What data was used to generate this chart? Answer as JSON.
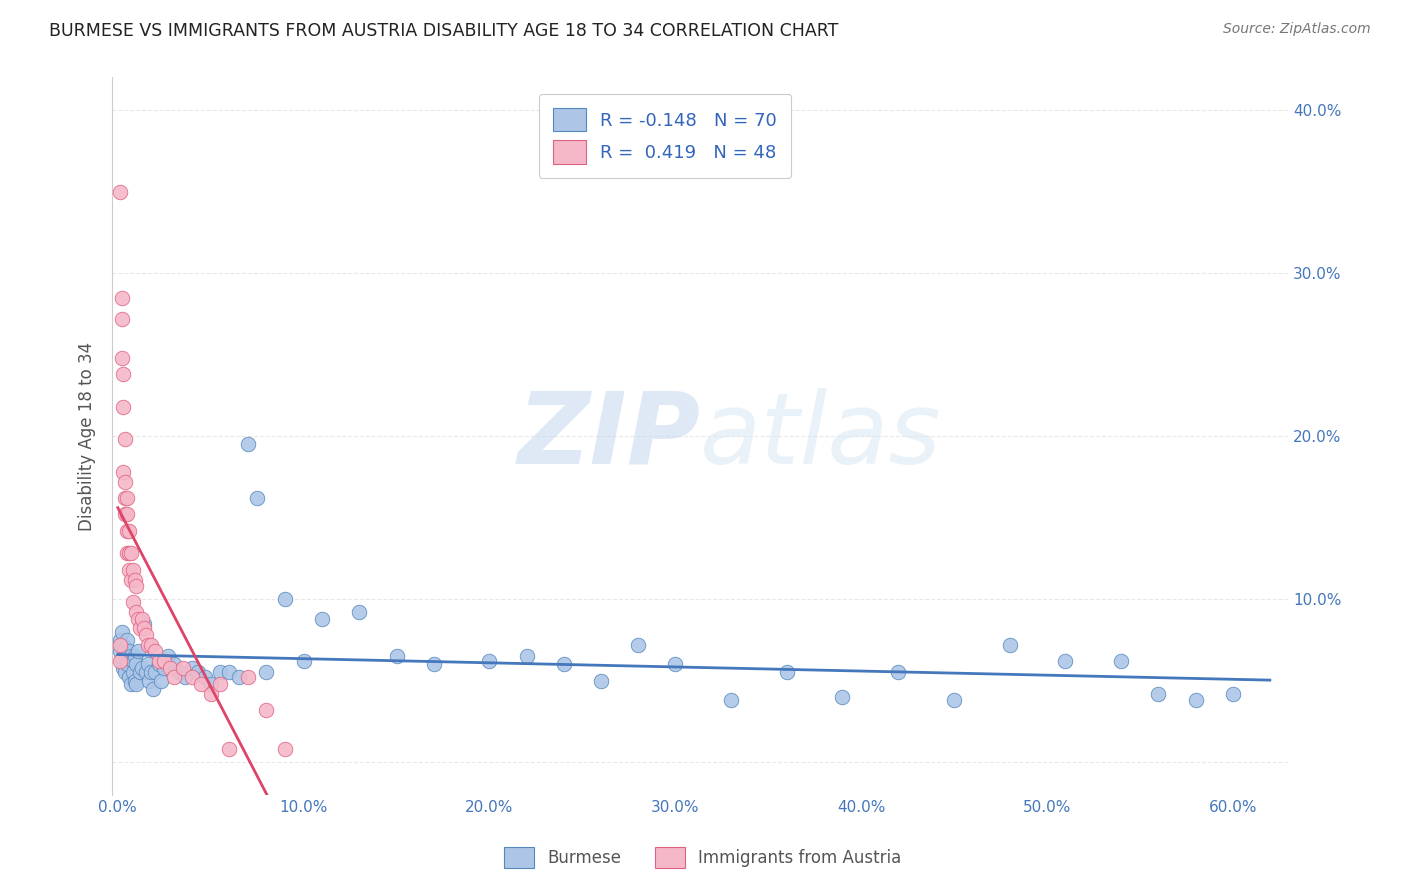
{
  "title": "BURMESE VS IMMIGRANTS FROM AUSTRIA DISABILITY AGE 18 TO 34 CORRELATION CHART",
  "source": "Source: ZipAtlas.com",
  "ylabel": "Disability Age 18 to 34",
  "xlim": [
    -0.003,
    0.63
  ],
  "ylim": [
    -0.02,
    0.42
  ],
  "xticks": [
    0.0,
    0.1,
    0.2,
    0.3,
    0.4,
    0.5,
    0.6
  ],
  "yticks": [
    0.0,
    0.1,
    0.2,
    0.3,
    0.4
  ],
  "xtick_labels": [
    "0.0%",
    "10.0%",
    "20.0%",
    "30.0%",
    "40.0%",
    "50.0%",
    "60.0%"
  ],
  "ytick_labels_right": [
    "",
    "10.0%",
    "20.0%",
    "30.0%",
    "40.0%"
  ],
  "watermark_zip": "ZIP",
  "watermark_atlas": "atlas",
  "legend_R_blue": "-0.148",
  "legend_N_blue": "70",
  "legend_R_pink": "0.419",
  "legend_N_pink": "48",
  "blue_color": "#adc6e8",
  "pink_color": "#f5b8c8",
  "blue_edge_color": "#5588bb",
  "pink_edge_color": "#e06080",
  "blue_line_color": "#4477bb",
  "pink_line_color": "#dd4466",
  "blue_scatter_x": [
    0.001,
    0.001,
    0.002,
    0.002,
    0.003,
    0.003,
    0.004,
    0.004,
    0.005,
    0.005,
    0.006,
    0.006,
    0.007,
    0.007,
    0.008,
    0.008,
    0.009,
    0.009,
    0.01,
    0.01,
    0.011,
    0.012,
    0.013,
    0.014,
    0.015,
    0.016,
    0.017,
    0.018,
    0.019,
    0.02,
    0.022,
    0.023,
    0.025,
    0.027,
    0.03,
    0.033,
    0.036,
    0.04,
    0.043,
    0.047,
    0.05,
    0.055,
    0.06,
    0.065,
    0.07,
    0.075,
    0.08,
    0.09,
    0.1,
    0.11,
    0.13,
    0.15,
    0.17,
    0.2,
    0.22,
    0.24,
    0.26,
    0.28,
    0.3,
    0.33,
    0.36,
    0.39,
    0.42,
    0.45,
    0.48,
    0.51,
    0.54,
    0.56,
    0.58,
    0.6
  ],
  "blue_scatter_y": [
    0.075,
    0.068,
    0.08,
    0.063,
    0.072,
    0.058,
    0.07,
    0.055,
    0.075,
    0.06,
    0.068,
    0.052,
    0.065,
    0.048,
    0.062,
    0.055,
    0.065,
    0.05,
    0.06,
    0.048,
    0.068,
    0.055,
    0.058,
    0.085,
    0.055,
    0.06,
    0.05,
    0.055,
    0.045,
    0.055,
    0.06,
    0.05,
    0.058,
    0.065,
    0.06,
    0.055,
    0.052,
    0.058,
    0.055,
    0.052,
    0.048,
    0.055,
    0.055,
    0.052,
    0.195,
    0.162,
    0.055,
    0.1,
    0.062,
    0.088,
    0.092,
    0.065,
    0.06,
    0.062,
    0.065,
    0.06,
    0.05,
    0.072,
    0.06,
    0.038,
    0.055,
    0.04,
    0.055,
    0.038,
    0.072,
    0.062,
    0.062,
    0.042,
    0.038,
    0.042
  ],
  "pink_scatter_x": [
    0.001,
    0.001,
    0.001,
    0.002,
    0.002,
    0.002,
    0.003,
    0.003,
    0.003,
    0.004,
    0.004,
    0.004,
    0.004,
    0.005,
    0.005,
    0.005,
    0.005,
    0.006,
    0.006,
    0.006,
    0.007,
    0.007,
    0.008,
    0.008,
    0.009,
    0.01,
    0.01,
    0.011,
    0.012,
    0.013,
    0.014,
    0.015,
    0.016,
    0.018,
    0.02,
    0.022,
    0.025,
    0.028,
    0.03,
    0.035,
    0.04,
    0.045,
    0.05,
    0.055,
    0.06,
    0.07,
    0.08,
    0.09
  ],
  "pink_scatter_y": [
    0.35,
    0.072,
    0.062,
    0.285,
    0.272,
    0.248,
    0.238,
    0.218,
    0.178,
    0.198,
    0.172,
    0.162,
    0.152,
    0.162,
    0.152,
    0.142,
    0.128,
    0.142,
    0.128,
    0.118,
    0.128,
    0.112,
    0.118,
    0.098,
    0.112,
    0.108,
    0.092,
    0.088,
    0.082,
    0.088,
    0.082,
    0.078,
    0.072,
    0.072,
    0.068,
    0.062,
    0.062,
    0.058,
    0.052,
    0.058,
    0.052,
    0.048,
    0.042,
    0.048,
    0.008,
    0.052,
    0.032,
    0.008
  ],
  "background_color": "#ffffff",
  "grid_color": "#e8e8e8"
}
